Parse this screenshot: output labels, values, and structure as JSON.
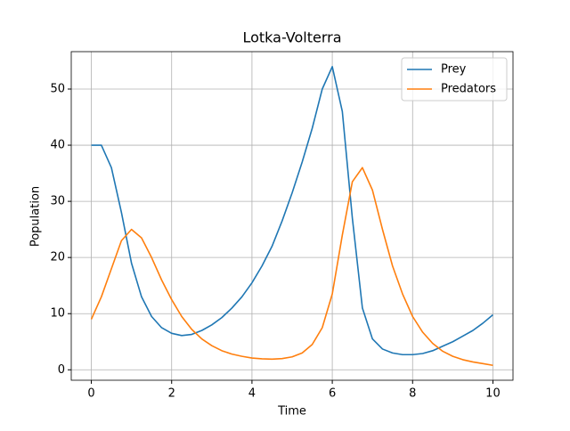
{
  "chart_data": {
    "type": "line",
    "title": "Lotka-Volterra",
    "x_label": "Time",
    "y_label": "Population",
    "x": [
      0,
      0.25,
      0.5,
      0.75,
      1,
      1.25,
      1.5,
      1.75,
      2,
      2.25,
      2.5,
      2.75,
      3,
      3.25,
      3.5,
      3.75,
      4,
      4.25,
      4.5,
      4.75,
      5,
      5.25,
      5.5,
      5.75,
      6,
      6.25,
      6.5,
      6.75,
      7,
      7.25,
      7.5,
      7.75,
      8,
      8.25,
      8.5,
      8.75,
      9,
      9.25,
      9.5,
      9.75,
      10
    ],
    "series": [
      {
        "name": "Prey",
        "color": "#1f77b4",
        "values": [
          40,
          40,
          36,
          28,
          19,
          13,
          9.5,
          7.5,
          6.5,
          6.1,
          6.3,
          7,
          8,
          9.3,
          11,
          13,
          15.5,
          18.5,
          22,
          26.5,
          31.5,
          37,
          43,
          50,
          54,
          46,
          27,
          11,
          5.5,
          3.7,
          3,
          2.7,
          2.7,
          2.9,
          3.4,
          4.2,
          5,
          6,
          7,
          8.3,
          9.8
        ]
      },
      {
        "name": "Predators",
        "color": "#ff7f0e",
        "values": [
          9,
          13,
          18,
          23,
          25,
          23.5,
          20,
          16,
          12.5,
          9.5,
          7.2,
          5.5,
          4.3,
          3.4,
          2.8,
          2.4,
          2.1,
          1.95,
          1.9,
          2,
          2.3,
          3,
          4.5,
          7.5,
          13.5,
          24,
          33.5,
          36,
          32,
          25,
          18.5,
          13.5,
          9.5,
          6.7,
          4.7,
          3.3,
          2.4,
          1.8,
          1.4,
          1.1,
          0.8
        ]
      }
    ],
    "xlim": [
      -0.5,
      10.5
    ],
    "ylim": [
      -1.86,
      56.66
    ],
    "xticks": [
      0,
      2,
      4,
      6,
      8,
      10
    ],
    "yticks": [
      0,
      10,
      20,
      30,
      40,
      50
    ],
    "grid": true,
    "legend": "upper right"
  }
}
